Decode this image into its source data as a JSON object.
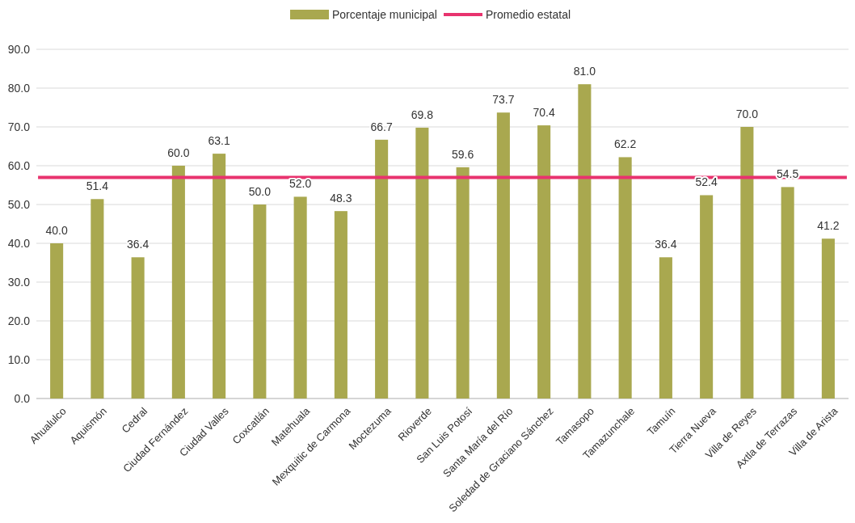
{
  "chart_data": {
    "type": "bar",
    "categories": [
      "Ahualulco",
      "Aquismón",
      "Cedral",
      "Ciudad Fernández",
      "Ciudad Valles",
      "Coxcatlán",
      "Matehuala",
      "Mexquitic de Carmona",
      "Moctezuma",
      "Rioverde",
      "San Luis Potosí",
      "Santa María del Río",
      "Soledad de Graciano Sánchez",
      "Tamasopo",
      "Tamazunchale",
      "Tamuín",
      "Tierra Nueva",
      "Villa de Reyes",
      "Axtla de Terrazas",
      "Villa de Arista"
    ],
    "series": [
      {
        "name": "Porcentaje municipal",
        "color": "#a9a84f",
        "values": [
          40.0,
          51.4,
          36.4,
          60.0,
          63.1,
          50.0,
          52.0,
          48.3,
          66.7,
          69.8,
          59.6,
          73.7,
          70.4,
          81.0,
          62.2,
          36.4,
          52.4,
          70.0,
          54.5,
          41.2
        ],
        "value_labels": [
          "40.0",
          "51.4",
          "36.4",
          "60.0",
          "63.1",
          "50.0",
          "52.0",
          "48.3",
          "66.7",
          "69.8",
          "59.6",
          "73.7",
          "70.4",
          "81.0",
          "62.2",
          "36.4",
          "52.4",
          "70.0",
          "54.5",
          "41.2"
        ]
      }
    ],
    "ref_lines": [
      {
        "axis": "y",
        "value": 57,
        "label": "Promedio estatal",
        "color": "#e8336e"
      }
    ],
    "ylim": [
      0,
      90
    ],
    "yticks": [
      {
        "value": 0,
        "label": "0.0"
      },
      {
        "value": 10,
        "label": "10.0"
      },
      {
        "value": 20,
        "label": "20.0"
      },
      {
        "value": 30,
        "label": "30.0"
      },
      {
        "value": 40,
        "label": "40.0"
      },
      {
        "value": 50,
        "label": "50.0"
      },
      {
        "value": 60,
        "label": "60.0"
      },
      {
        "value": 70,
        "label": "70.0"
      },
      {
        "value": 80,
        "label": "80.0"
      },
      {
        "value": 90,
        "label": "90.0"
      }
    ],
    "grid": "y",
    "legend": "top"
  }
}
